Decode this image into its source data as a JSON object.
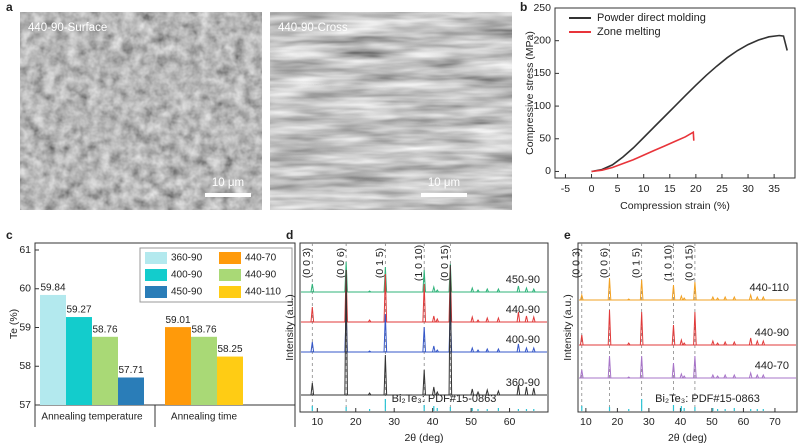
{
  "panel_a": {
    "letter": "a",
    "images": [
      {
        "label": "440-90-Surface",
        "scale_bar": "10 μm"
      },
      {
        "label": "440-90-Cross",
        "scale_bar": "10 μm"
      }
    ]
  },
  "chart_data": [
    {
      "panel": "b",
      "type": "line",
      "xlabel": "Compression strain (%)",
      "ylabel": "Compressive stress (MPa)",
      "xlim": [
        -7,
        39
      ],
      "ylim": [
        -10,
        250
      ],
      "xticks": [
        -5,
        0,
        5,
        10,
        15,
        20,
        25,
        30,
        35
      ],
      "yticks": [
        0,
        50,
        100,
        150,
        200,
        250
      ],
      "legend": "upper left",
      "series": [
        {
          "name": "Powder direct molding",
          "color": "#333333",
          "x": [
            0,
            2,
            4,
            6,
            8,
            10,
            12,
            14,
            16,
            18,
            20,
            22,
            24,
            26,
            28,
            30,
            32,
            34,
            36,
            36.8,
            37.5
          ],
          "values": [
            0,
            3,
            10,
            22,
            36,
            52,
            68,
            84,
            100,
            116,
            132,
            147,
            161,
            174,
            185,
            194,
            201,
            206,
            208,
            207,
            185
          ]
        },
        {
          "name": "Zone melting",
          "color": "#e8343a",
          "x": [
            0,
            2,
            4,
            6,
            8,
            10,
            12,
            14,
            16,
            18,
            19.5,
            19.6
          ],
          "values": [
            0,
            2,
            6,
            12,
            18,
            25,
            32,
            39,
            46,
            53,
            60,
            47
          ]
        }
      ]
    },
    {
      "panel": "c",
      "type": "grouped_bar",
      "ylabel": "Te (%)",
      "ylim": [
        57,
        61
      ],
      "yticks": [
        57,
        58,
        59,
        60,
        61
      ],
      "series": [
        {
          "name": "360-90",
          "color": "#b3e9ee"
        },
        {
          "name": "400-90",
          "color": "#13cccc"
        },
        {
          "name": "450-90",
          "color": "#2a7db8"
        },
        {
          "name": "440-70",
          "color": "#ff9a0a"
        },
        {
          "name": "440-90",
          "color": "#a9d976"
        },
        {
          "name": "440-110",
          "color": "#ffcc14"
        }
      ],
      "groups": [
        {
          "name": "Annealing temperature",
          "bars": [
            {
              "series": "360-90",
              "value": 59.84
            },
            {
              "series": "400-90",
              "value": 59.27
            },
            {
              "series": "440-90",
              "value": 58.76
            },
            {
              "series": "450-90",
              "value": 57.71
            }
          ]
        },
        {
          "name": "Annealing time",
          "bars": [
            {
              "series": "440-70",
              "value": 59.01
            },
            {
              "series": "440-90",
              "value": 58.76
            },
            {
              "series": "440-110",
              "value": 58.25
            }
          ]
        }
      ]
    },
    {
      "panel": "d",
      "type": "xrd",
      "xlabel": "2θ (deg)",
      "ylabel": "Intensity (a.u.)",
      "xlim": [
        5.5,
        70
      ],
      "xticks": [
        10,
        20,
        30,
        40,
        50,
        60
      ],
      "x": [
        8.7,
        17.5,
        23.6,
        27.7,
        37.8,
        40.3,
        41.2,
        44.6,
        50.3,
        51.8,
        54.2,
        57.1,
        62.3,
        64.4,
        66.3
      ],
      "series": [
        {
          "name": "450-90",
          "color": "#2fb37a",
          "values": [
            8,
            30,
            1,
            25,
            22,
            5,
            2,
            28,
            4,
            2,
            3,
            3,
            6,
            4,
            3
          ]
        },
        {
          "name": "440-90",
          "color": "#e03a3a",
          "values": [
            15,
            52,
            2,
            48,
            38,
            6,
            3,
            55,
            5,
            2,
            4,
            4,
            10,
            6,
            5
          ]
        },
        {
          "name": "400-90",
          "color": "#3557c8",
          "values": [
            10,
            40,
            1,
            38,
            25,
            6,
            2,
            45,
            4,
            2,
            3,
            3,
            8,
            4,
            4
          ]
        },
        {
          "name": "360-90",
          "color": "#333333",
          "values": [
            12,
            125,
            2,
            40,
            25,
            8,
            3,
            130,
            6,
            3,
            5,
            4,
            10,
            8,
            7
          ]
        }
      ],
      "reference": {
        "name": "Bi₂Te₃: PDF#15-0863",
        "color": "#2cc3d4",
        "values": [
          5,
          4,
          2,
          12,
          6,
          5,
          3,
          4,
          3,
          2,
          2,
          3,
          2,
          2,
          2
        ]
      },
      "annotations": [
        {
          "label": "(0 0 3)",
          "x": 8.7
        },
        {
          "label": "(0 0 6)",
          "x": 17.5
        },
        {
          "label": "(0 1 5)",
          "x": 27.7
        },
        {
          "label": "(1 0 10)",
          "x": 37.8
        },
        {
          "label": "(0 0 15)",
          "x": 44.6
        }
      ]
    },
    {
      "panel": "e",
      "type": "xrd",
      "xlabel": "2θ (deg)",
      "ylabel": "Intensity (a.u.)",
      "xlim": [
        7.5,
        77
      ],
      "xticks": [
        10,
        20,
        30,
        40,
        50,
        60,
        70
      ],
      "x": [
        8.7,
        17.5,
        23.6,
        27.7,
        37.8,
        40.3,
        41.2,
        44.6,
        50.3,
        51.8,
        54.2,
        57.1,
        62.3,
        64.4,
        66.3
      ],
      "series": [
        {
          "name": "440-110",
          "color": "#f2a122",
          "values": [
            5,
            22,
            1,
            20,
            15,
            4,
            2,
            18,
            3,
            2,
            3,
            3,
            5,
            3,
            3
          ]
        },
        {
          "name": "440-90",
          "color": "#e03a3a",
          "values": [
            10,
            35,
            2,
            33,
            20,
            5,
            2,
            33,
            4,
            2,
            3,
            3,
            7,
            4,
            4
          ]
        },
        {
          "name": "440-70",
          "color": "#a774c8",
          "values": [
            8,
            22,
            1,
            22,
            15,
            4,
            2,
            22,
            3,
            2,
            3,
            3,
            5,
            3,
            3
          ]
        }
      ],
      "reference": {
        "name": "Bi₂Te₃: PDF#15-0863",
        "color": "#2cc3d4",
        "values": [
          5,
          4,
          2,
          12,
          6,
          5,
          3,
          4,
          3,
          2,
          2,
          3,
          2,
          2,
          2
        ]
      },
      "annotations": [
        {
          "label": "(0 0 3)",
          "x": 8.7
        },
        {
          "label": "(0 0 6)",
          "x": 17.5
        },
        {
          "label": "(0 1 5)",
          "x": 27.7
        },
        {
          "label": "(1 0 10)",
          "x": 37.8
        },
        {
          "label": "(0 0 15)",
          "x": 44.6
        }
      ]
    }
  ]
}
